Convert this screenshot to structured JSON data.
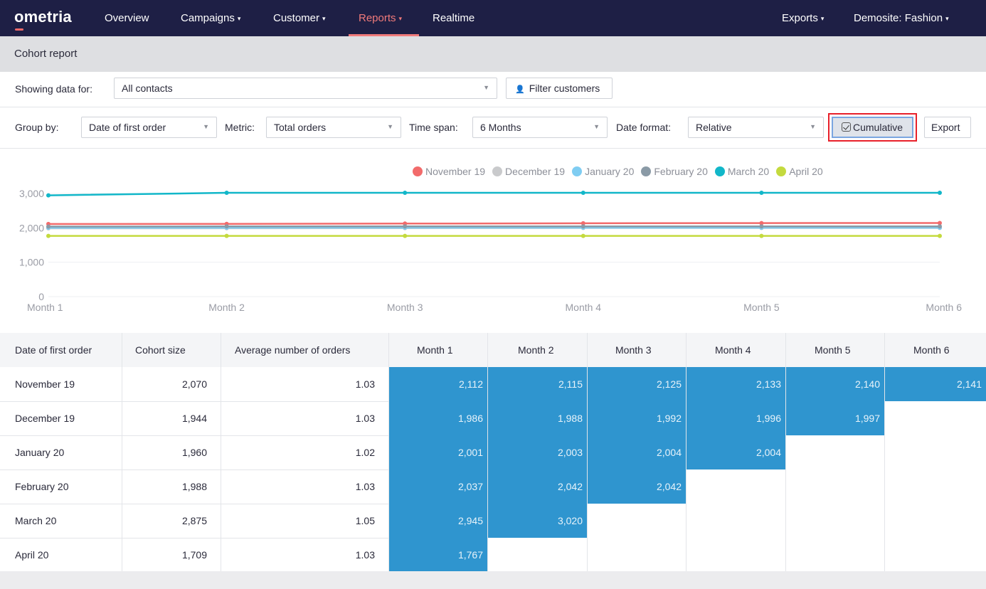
{
  "nav": {
    "logo": "ometria",
    "items": [
      {
        "label": "Overview",
        "caret": ""
      },
      {
        "label": "Campaigns",
        "caret": "▾"
      },
      {
        "label": "Customer",
        "caret": "▾"
      },
      {
        "label": "Reports",
        "caret": "▾"
      },
      {
        "label": "Realtime",
        "caret": ""
      }
    ],
    "right_items": [
      {
        "label": "Exports",
        "caret": "▾"
      },
      {
        "label": "Demosite: Fashion",
        "caret": "▾"
      }
    ],
    "active": "Reports",
    "accent": "#f07a7a"
  },
  "page": {
    "title": "Cohort report"
  },
  "filters": {
    "showing_label": "Showing data for:",
    "showing_value": "All contacts",
    "filter_button": "Filter customers",
    "group_label": "Group by:",
    "group_value": "Date of first order",
    "metric_label": "Metric:",
    "metric_value": "Total orders",
    "timespan_label": "Time span:",
    "timespan_value": "6 Months",
    "dateformat_label": "Date format:",
    "dateformat_value": "Relative",
    "cumulative_label": "Cumulative",
    "export_label": "Export"
  },
  "chart_data": {
    "type": "line",
    "x": [
      "Month 1",
      "Month 2",
      "Month 3",
      "Month 4",
      "Month 5",
      "Month 6"
    ],
    "y_ticks": [
      "0",
      "1,000",
      "2,000",
      "3,000"
    ],
    "ylim": [
      0,
      3000
    ],
    "series": [
      {
        "name": "November 19",
        "color": "#f26b6b",
        "values": [
          2112,
          2115,
          2125,
          2133,
          2140,
          2141
        ]
      },
      {
        "name": "December 19",
        "color": "#c9cacc",
        "values": [
          1986,
          1988,
          1992,
          1996,
          1997,
          1997
        ]
      },
      {
        "name": "January 20",
        "color": "#7fcdf2",
        "values": [
          2001,
          2003,
          2004,
          2004,
          2004,
          2004
        ]
      },
      {
        "name": "February 20",
        "color": "#8a9aa6",
        "values": [
          2037,
          2042,
          2042,
          2042,
          2042,
          2042
        ]
      },
      {
        "name": "March 20",
        "color": "#12b7c9",
        "values": [
          2945,
          3020,
          3020,
          3020,
          3020,
          3020
        ]
      },
      {
        "name": "April 20",
        "color": "#c4da3e",
        "values": [
          1767,
          1767,
          1767,
          1767,
          1767,
          1767
        ]
      }
    ]
  },
  "table": {
    "headers": [
      "Date of first order",
      "Cohort size",
      "Average number of orders",
      "Month 1",
      "Month 2",
      "Month 3",
      "Month 4",
      "Month 5",
      "Month 6"
    ],
    "rows": [
      {
        "cohort": "November 19",
        "size": "2,070",
        "avg": "1.03",
        "months": [
          "2,112",
          "2,115",
          "2,125",
          "2,133",
          "2,140",
          "2,141"
        ]
      },
      {
        "cohort": "December 19",
        "size": "1,944",
        "avg": "1.03",
        "months": [
          "1,986",
          "1,988",
          "1,992",
          "1,996",
          "1,997"
        ]
      },
      {
        "cohort": "January 20",
        "size": "1,960",
        "avg": "1.02",
        "months": [
          "2,001",
          "2,003",
          "2,004",
          "2,004"
        ]
      },
      {
        "cohort": "February 20",
        "size": "1,988",
        "avg": "1.03",
        "months": [
          "2,037",
          "2,042",
          "2,042"
        ]
      },
      {
        "cohort": "March 20",
        "size": "2,875",
        "avg": "1.05",
        "months": [
          "2,945",
          "3,020"
        ]
      },
      {
        "cohort": "April 20",
        "size": "1,709",
        "avg": "1.03",
        "months": [
          "1,767"
        ]
      }
    ],
    "cell_color": "#2f95cf"
  }
}
